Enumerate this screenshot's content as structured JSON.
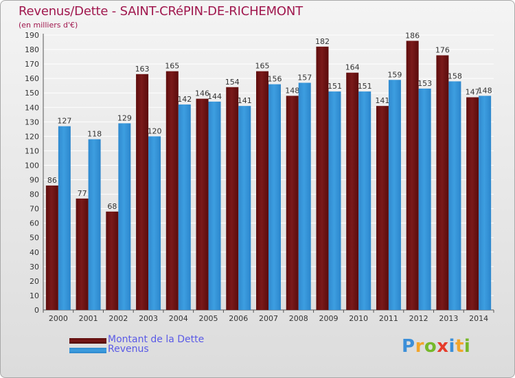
{
  "title": "Revenus/Dette - SAINT-CRéPIN-DE-RICHEMONT",
  "subtitle": "(en milliers d'€)",
  "colors": {
    "dette": "#7a1a1a",
    "revenus": "#3d9ee0",
    "title": "#a0184e",
    "legend_text": "#5a5ae6",
    "grid": "#ffffff"
  },
  "chart_data": {
    "type": "bar",
    "title": "Revenus/Dette - SAINT-CRéPIN-DE-RICHEMONT",
    "ylabel": "(en milliers d'€)",
    "xlabel": "",
    "ylim": [
      0,
      190
    ],
    "ytick_step": 10,
    "grid": true,
    "legend_position": "bottom-left",
    "categories": [
      "2000",
      "2001",
      "2002",
      "2003",
      "2004",
      "2005",
      "2006",
      "2007",
      "2008",
      "2009",
      "2010",
      "2011",
      "2012",
      "2013",
      "2014"
    ],
    "series": [
      {
        "name": "Montant de la Dette",
        "values": [
          86,
          77,
          68,
          163,
          165,
          146,
          154,
          165,
          148,
          182,
          164,
          141,
          186,
          176,
          147
        ]
      },
      {
        "name": "Revenus",
        "values": [
          127,
          118,
          129,
          120,
          142,
          144,
          141,
          156,
          157,
          151,
          151,
          159,
          153,
          158,
          148
        ]
      }
    ]
  },
  "legend": {
    "dette_label": "Montant de la Dette",
    "revenus_label": "Revenus"
  },
  "logo": {
    "letters": [
      "P",
      "r",
      "o",
      "x",
      "i",
      "t",
      "i"
    ],
    "letter_colors": [
      "#3c8fd8",
      "#f2a52a",
      "#76b82a",
      "#e63c2b",
      "#3c8fd8",
      "#f2a52a",
      "#76b82a"
    ]
  }
}
